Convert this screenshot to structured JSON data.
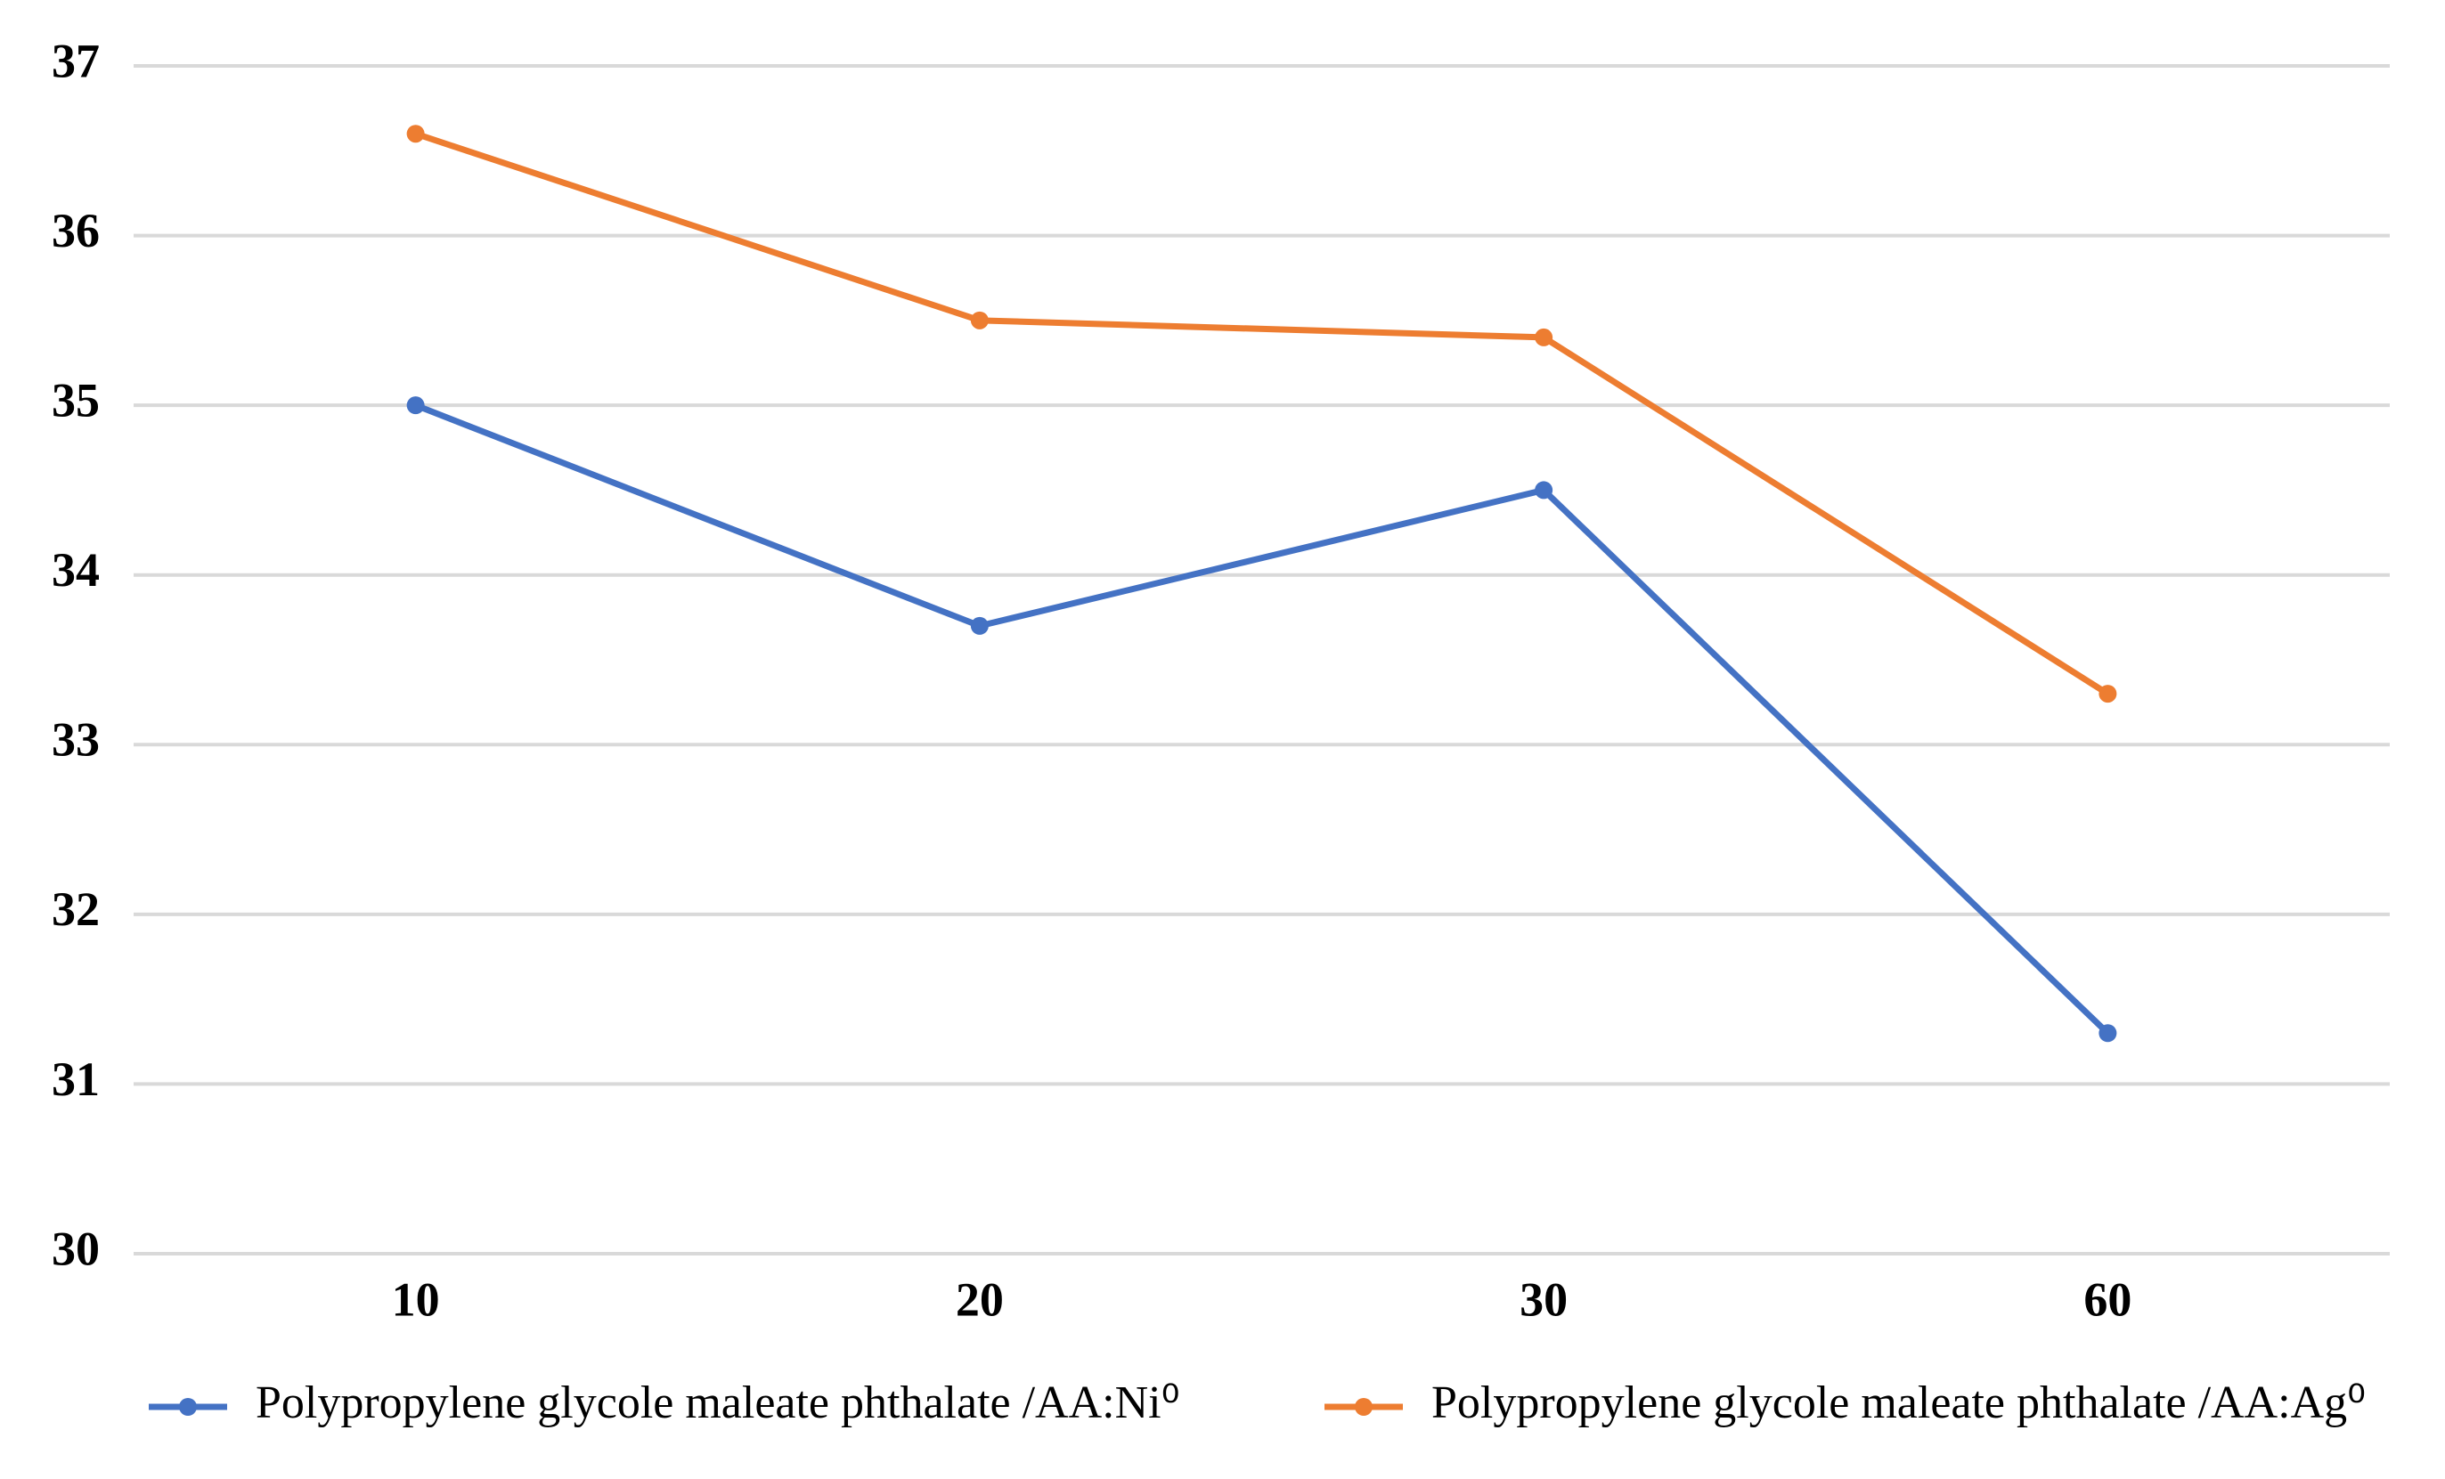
{
  "chart_data": {
    "type": "line",
    "categories": [
      "10",
      "20",
      "30",
      "60"
    ],
    "series": [
      {
        "name": "Polypropylene glycole maleate phthalate /AA:Ni⁰",
        "color": "#4472c4",
        "values": [
          35,
          33.7,
          34.5,
          31.3
        ]
      },
      {
        "name": "Polypropylene glycole maleate phthalate /AA:Ag⁰",
        "color": "#ed7d31",
        "values": [
          36.6,
          35.5,
          35.4,
          33.3
        ]
      }
    ],
    "ylim": [
      30,
      37
    ],
    "yticks": [
      30,
      31,
      32,
      33,
      34,
      35,
      36,
      37
    ],
    "grid": true,
    "legend": "bottom"
  }
}
